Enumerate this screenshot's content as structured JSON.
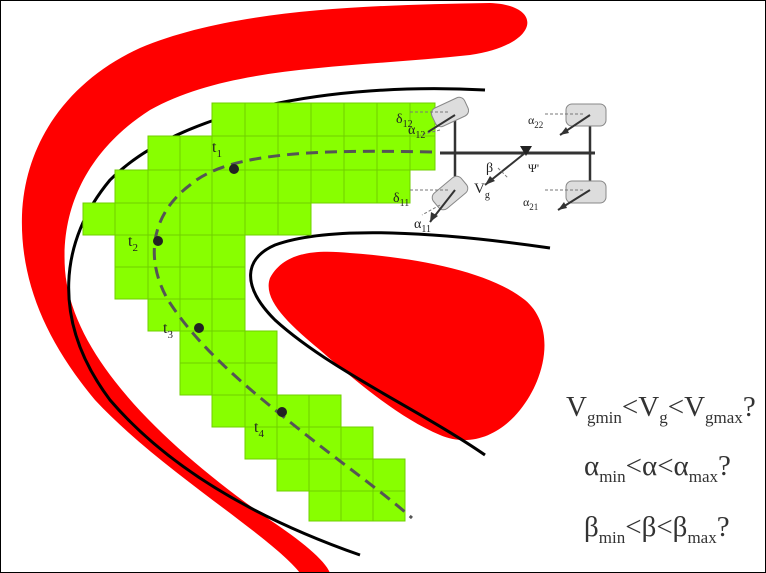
{
  "colors": {
    "obstacle": "#ff0000",
    "grid_cell": "#88ff00",
    "grid_line": "#6fcf00",
    "road_edge": "#000000",
    "trajectory": "#555555",
    "wheel": "#dddddd",
    "vehicle_line": "#333333"
  },
  "trajectory_points": [
    {
      "id": "t1",
      "base": "t",
      "sub": "1"
    },
    {
      "id": "t2",
      "base": "t",
      "sub": "2"
    },
    {
      "id": "t3",
      "base": "t",
      "sub": "3"
    },
    {
      "id": "t4",
      "base": "t",
      "sub": "4"
    }
  ],
  "vehicle_labels": {
    "delta12": {
      "base": "δ",
      "sub": "12"
    },
    "alpha12": {
      "base": "α",
      "sub": "12"
    },
    "alpha22": {
      "base": "α",
      "sub": "22"
    },
    "beta": {
      "base": "β",
      "sub": ""
    },
    "psi": {
      "base": "Ψ'",
      "sub": ""
    },
    "vg": {
      "base": "V",
      "sub": "g"
    },
    "delta11": {
      "base": "δ",
      "sub": "11"
    },
    "alpha11": {
      "base": "α",
      "sub": "11"
    },
    "alpha21": {
      "base": "α",
      "sub": "21"
    }
  },
  "constraints": [
    {
      "p1": "V",
      "s1": "gmin",
      "p2": "<V",
      "s2": "g",
      "p3": "<V",
      "s3": "gmax",
      "end": "?"
    },
    {
      "p1": "α",
      "s1": "min",
      "p2": "<α<α",
      "s2": "",
      "p3": "",
      "s3": "max",
      "end": "?"
    },
    {
      "p1": "β",
      "s1": "min",
      "p2": "<β<β",
      "s2": "",
      "p3": "",
      "s3": "max",
      "end": "?"
    }
  ]
}
